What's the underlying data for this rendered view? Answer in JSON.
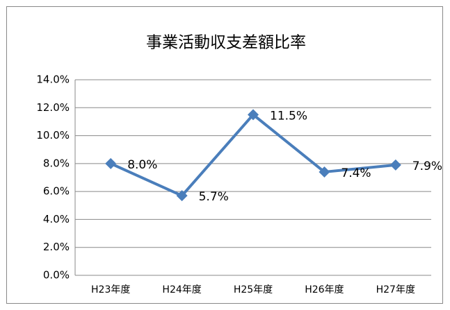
{
  "chart_data": {
    "type": "line",
    "title": "事業活動収支差額比率",
    "categories": [
      "H23年度",
      "H24年度",
      "H25年度",
      "H26年度",
      "H27年度"
    ],
    "values": [
      8.0,
      5.7,
      11.5,
      7.4,
      7.9
    ],
    "value_labels": [
      "8.0%",
      "5.7%",
      "11.5%",
      "7.4%",
      "7.9%"
    ],
    "color": "#4a7ebb",
    "ylim": [
      0,
      14
    ],
    "yticks": [
      {
        "value": 0,
        "label": "0.0%"
      },
      {
        "value": 2,
        "label": "2.0%"
      },
      {
        "value": 4,
        "label": "4.0%"
      },
      {
        "value": 6,
        "label": "6.0%"
      },
      {
        "value": 8,
        "label": "8.0%"
      },
      {
        "value": 10,
        "label": "10.0%"
      },
      {
        "value": 12,
        "label": "12.0%"
      },
      {
        "value": 14,
        "label": "14.0%"
      }
    ],
    "grid": true
  }
}
